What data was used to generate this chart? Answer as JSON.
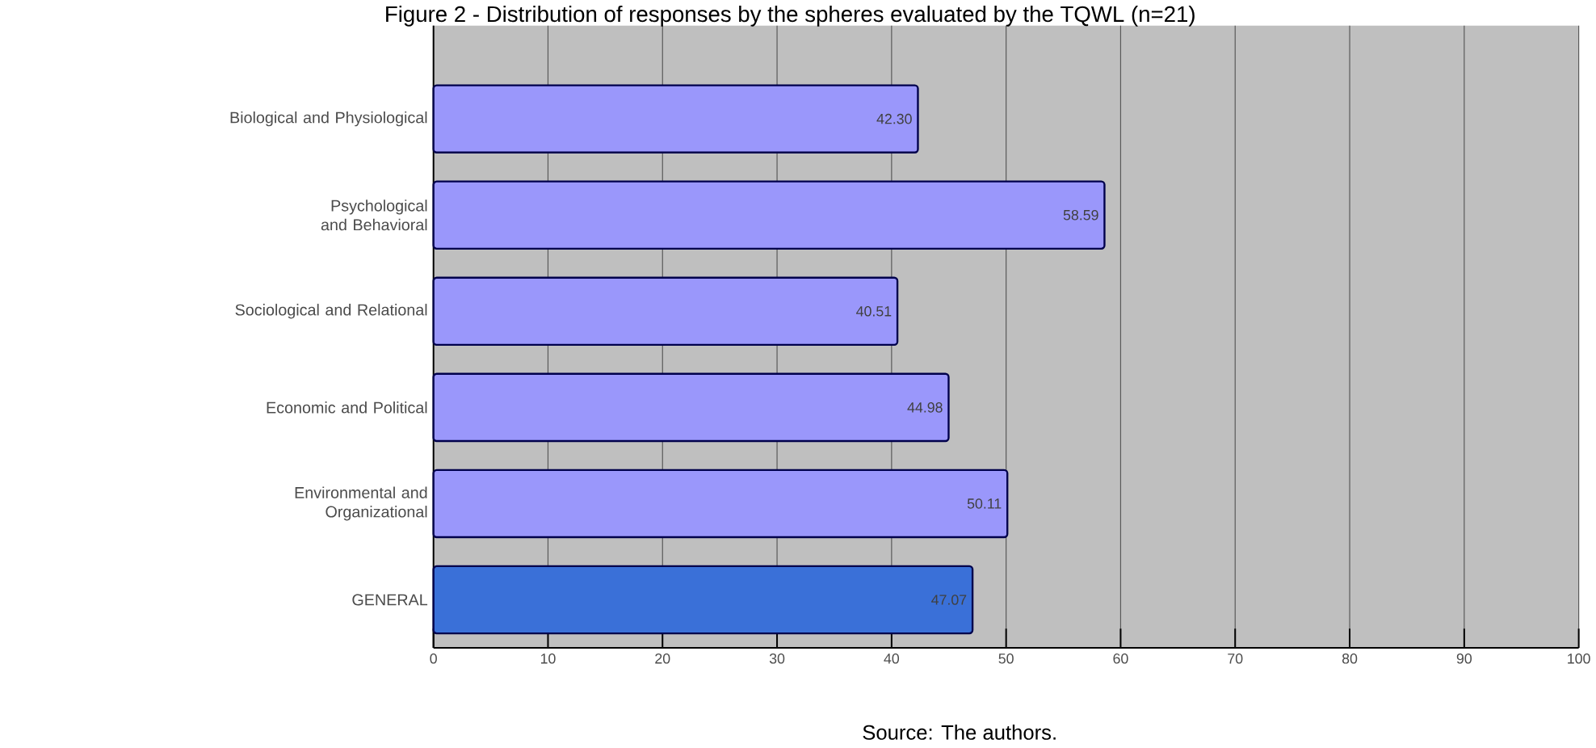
{
  "chart_data": {
    "type": "bar",
    "orientation": "horizontal",
    "title": "Figure 2 - Distribution of responses by the spheres evaluated by the TQWL (n=21)",
    "categories": [
      "Biological and Physiological",
      "Psychological and Behavioral",
      "Sociological and Relational",
      "Economic and Political",
      "Environmental and Organizational",
      "GENERAL"
    ],
    "values": [
      42.3,
      58.59,
      40.51,
      44.98,
      50.11,
      47.07
    ],
    "value_labels": [
      "42.30",
      "58.59",
      "40.51",
      "44.98",
      "50.11",
      "47.07"
    ],
    "colors": [
      "#9a97fb",
      "#9a97fb",
      "#9a97fb",
      "#9a97fb",
      "#9a97fb",
      "#3a70d8"
    ],
    "xlim": [
      0,
      100
    ],
    "xticks": [
      0,
      10,
      20,
      30,
      40,
      50,
      60,
      70,
      80,
      90,
      100
    ],
    "grid": "x",
    "annotations": [
      "Source: The authors."
    ]
  }
}
